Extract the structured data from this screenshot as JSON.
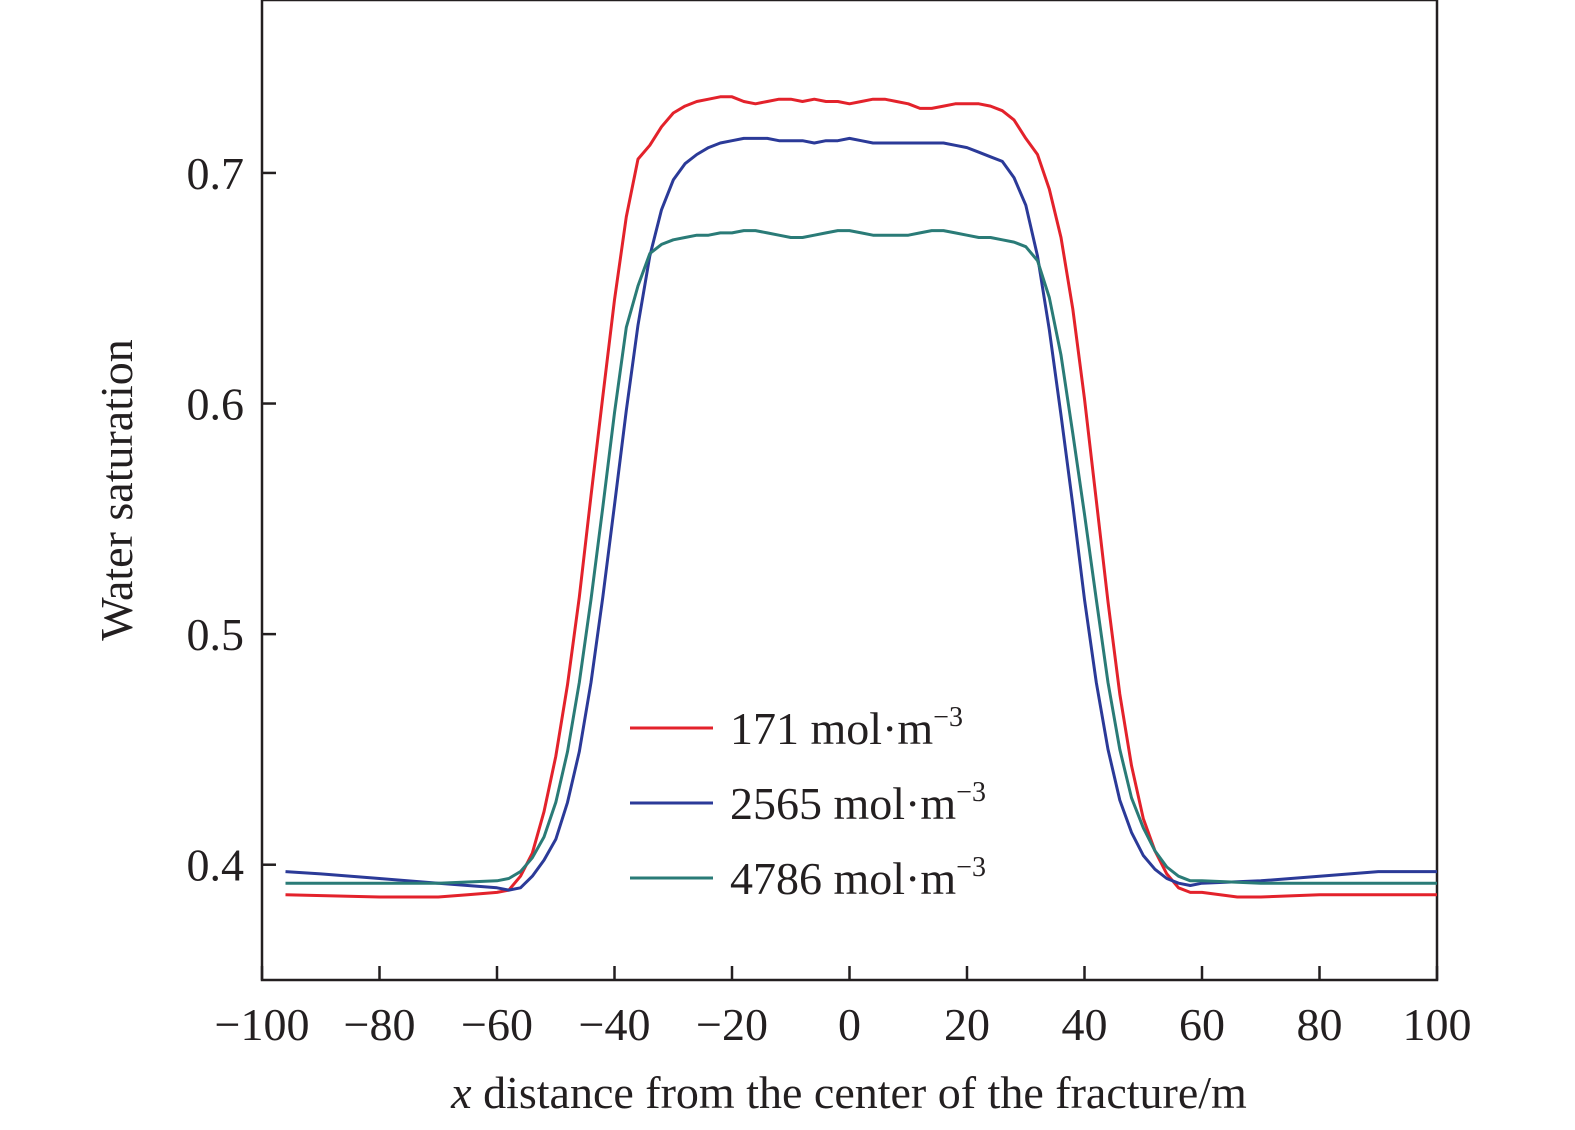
{
  "chart_data": {
    "type": "line",
    "xlabel_italic": "x",
    "xlabel_rest": " distance from the center of the fracture/m",
    "ylabel": "Water saturation",
    "xlim": [
      -100,
      100
    ],
    "ylim": [
      0.35,
      0.775
    ],
    "x_ticks": [
      -100,
      -80,
      -60,
      -40,
      -20,
      0,
      20,
      40,
      60,
      80,
      100
    ],
    "x_tick_labels": [
      "−100",
      "−80",
      "−60",
      "−40",
      "−20",
      "0",
      "20",
      "40",
      "60",
      "80",
      "100"
    ],
    "y_ticks": [
      0.4,
      0.5,
      0.6,
      0.7
    ],
    "y_tick_labels": [
      "0.4",
      "0.5",
      "0.6",
      "0.7"
    ],
    "grid": false,
    "legend_position": "center-bottom",
    "series": [
      {
        "name": "171 mol·m",
        "name_sup": "−3",
        "color": "#e3222b",
        "x": [
          -96,
          -80,
          -70,
          -65,
          -60,
          -58,
          -56,
          -54,
          -52,
          -50,
          -48,
          -46,
          -44,
          -42,
          -40,
          -38,
          -36,
          -34,
          -32,
          -30,
          -28,
          -26,
          -24,
          -22,
          -20,
          -18,
          -16,
          -14,
          -12,
          -10,
          -8,
          -6,
          -4,
          -2,
          0,
          2,
          4,
          6,
          8,
          10,
          12,
          14,
          16,
          18,
          20,
          22,
          24,
          26,
          28,
          30,
          32,
          34,
          36,
          38,
          40,
          42,
          44,
          46,
          48,
          50,
          52,
          54,
          56,
          58,
          60,
          66,
          70,
          80,
          100
        ],
        "y": [
          0.387,
          0.386,
          0.386,
          0.387,
          0.388,
          0.389,
          0.395,
          0.405,
          0.423,
          0.447,
          0.478,
          0.516,
          0.56,
          0.603,
          0.645,
          0.681,
          0.706,
          0.712,
          0.72,
          0.726,
          0.729,
          0.731,
          0.732,
          0.733,
          0.733,
          0.731,
          0.73,
          0.731,
          0.732,
          0.732,
          0.731,
          0.732,
          0.731,
          0.731,
          0.73,
          0.731,
          0.732,
          0.732,
          0.731,
          0.73,
          0.728,
          0.728,
          0.729,
          0.73,
          0.73,
          0.73,
          0.729,
          0.727,
          0.723,
          0.715,
          0.708,
          0.693,
          0.672,
          0.641,
          0.602,
          0.558,
          0.514,
          0.474,
          0.443,
          0.42,
          0.406,
          0.396,
          0.39,
          0.388,
          0.388,
          0.386,
          0.386,
          0.387,
          0.387
        ]
      },
      {
        "name": "2565  mol·m",
        "name_sup": "−3",
        "color": "#2b3a98",
        "x": [
          -96,
          -90,
          -80,
          -70,
          -60,
          -58,
          -56,
          -54,
          -52,
          -50,
          -48,
          -46,
          -44,
          -42,
          -40,
          -38,
          -36,
          -34,
          -32,
          -30,
          -28,
          -26,
          -24,
          -22,
          -20,
          -18,
          -16,
          -14,
          -12,
          -10,
          -8,
          -6,
          -4,
          -2,
          0,
          2,
          4,
          6,
          8,
          10,
          12,
          14,
          16,
          18,
          20,
          22,
          24,
          26,
          28,
          30,
          32,
          34,
          36,
          38,
          40,
          42,
          44,
          46,
          48,
          50,
          52,
          54,
          56,
          58,
          60,
          70,
          80,
          90,
          100
        ],
        "y": [
          0.397,
          0.396,
          0.394,
          0.392,
          0.39,
          0.389,
          0.39,
          0.395,
          0.402,
          0.411,
          0.427,
          0.449,
          0.479,
          0.516,
          0.556,
          0.597,
          0.634,
          0.664,
          0.684,
          0.697,
          0.704,
          0.708,
          0.711,
          0.713,
          0.714,
          0.715,
          0.715,
          0.715,
          0.714,
          0.714,
          0.714,
          0.713,
          0.714,
          0.714,
          0.715,
          0.714,
          0.713,
          0.713,
          0.713,
          0.713,
          0.713,
          0.713,
          0.713,
          0.712,
          0.711,
          0.709,
          0.707,
          0.705,
          0.698,
          0.686,
          0.664,
          0.632,
          0.595,
          0.556,
          0.515,
          0.479,
          0.45,
          0.428,
          0.414,
          0.404,
          0.398,
          0.394,
          0.392,
          0.391,
          0.392,
          0.393,
          0.395,
          0.397,
          0.397
        ]
      },
      {
        "name": "4786 mol·m",
        "name_sup": "−3",
        "color": "#2a7b77",
        "x": [
          -96,
          -90,
          -80,
          -70,
          -60,
          -58,
          -56,
          -54,
          -52,
          -50,
          -48,
          -46,
          -44,
          -42,
          -40,
          -38,
          -36,
          -34,
          -32,
          -30,
          -28,
          -26,
          -24,
          -22,
          -20,
          -18,
          -16,
          -14,
          -12,
          -10,
          -8,
          -6,
          -4,
          -2,
          0,
          2,
          4,
          6,
          8,
          10,
          12,
          14,
          16,
          18,
          20,
          22,
          24,
          26,
          28,
          30,
          32,
          34,
          36,
          38,
          40,
          42,
          44,
          46,
          48,
          50,
          52,
          54,
          56,
          58,
          60,
          70,
          80,
          90,
          100
        ],
        "y": [
          0.392,
          0.392,
          0.392,
          0.392,
          0.393,
          0.394,
          0.397,
          0.403,
          0.412,
          0.427,
          0.449,
          0.479,
          0.515,
          0.555,
          0.596,
          0.633,
          0.651,
          0.665,
          0.669,
          0.671,
          0.672,
          0.673,
          0.673,
          0.674,
          0.674,
          0.675,
          0.675,
          0.674,
          0.673,
          0.672,
          0.672,
          0.673,
          0.674,
          0.675,
          0.675,
          0.674,
          0.673,
          0.673,
          0.673,
          0.673,
          0.674,
          0.675,
          0.675,
          0.674,
          0.673,
          0.672,
          0.672,
          0.671,
          0.67,
          0.668,
          0.662,
          0.646,
          0.621,
          0.587,
          0.552,
          0.515,
          0.479,
          0.45,
          0.429,
          0.416,
          0.406,
          0.399,
          0.395,
          0.393,
          0.393,
          0.392,
          0.392,
          0.392,
          0.392
        ]
      }
    ]
  }
}
